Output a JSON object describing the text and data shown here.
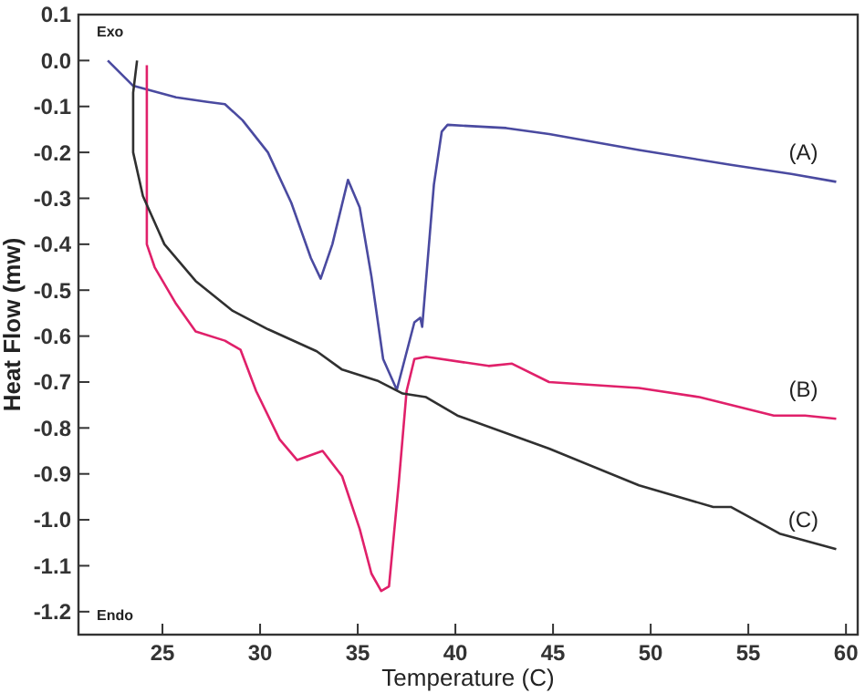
{
  "chart_data": {
    "type": "line",
    "xlabel": "Temperature (C)",
    "ylabel": "Heat Flow (mw)",
    "xlim": [
      20.7,
      60.6
    ],
    "ylim": [
      -1.25,
      0.1
    ],
    "xticks": [
      25,
      30,
      35,
      40,
      45,
      50,
      55,
      60
    ],
    "yticks": [
      {
        "value": 0.1,
        "label": "0.1"
      },
      {
        "value": 0,
        "label": "0.0"
      },
      {
        "value": -0.1,
        "label": "-0.1"
      },
      {
        "value": -0.2,
        "label": "-0.2"
      },
      {
        "value": -0.3,
        "label": "-0.3"
      },
      {
        "value": -0.4,
        "label": "-0.4"
      },
      {
        "value": -0.5,
        "label": "-0.5"
      },
      {
        "value": -0.6,
        "label": "-0.6"
      },
      {
        "value": -0.7,
        "label": "-0.7"
      },
      {
        "value": -0.8,
        "label": "-0.8"
      },
      {
        "value": -0.9,
        "label": "-0.9"
      },
      {
        "value": -1,
        "label": "-1.0"
      },
      {
        "value": -1.1,
        "label": "-1.1"
      },
      {
        "value": -1.2,
        "label": "-1.2"
      }
    ],
    "grid": false,
    "annotations": [
      "Exo",
      "Endo"
    ],
    "series": [
      {
        "name": "(A)",
        "color": "#4a4aa0",
        "x": [
          22.2,
          23.5,
          25.7,
          27.3,
          28.2,
          29.1,
          30.4,
          31.6,
          32.6,
          33.1,
          33.7,
          34.5,
          35.1,
          35.7,
          36.3,
          37.0,
          37.9,
          38.2,
          38.3,
          38.9,
          39.3,
          39.6,
          42.6,
          44.8,
          49.4,
          54.1,
          57.2,
          59.5
        ],
        "values": [
          0.0,
          -0.055,
          -0.08,
          -0.09,
          -0.095,
          -0.13,
          -0.2,
          -0.31,
          -0.43,
          -0.475,
          -0.4,
          -0.26,
          -0.32,
          -0.47,
          -0.65,
          -0.717,
          -0.57,
          -0.56,
          -0.58,
          -0.27,
          -0.155,
          -0.14,
          -0.147,
          -0.16,
          -0.195,
          -0.227,
          -0.247,
          -0.264
        ]
      },
      {
        "name": "(B)",
        "color": "#e0206a",
        "x": [
          24.2,
          24.2,
          24.2,
          24.6,
          25.7,
          26.7,
          28.2,
          29.0,
          29.8,
          31.0,
          31.9,
          33.2,
          34.2,
          35.1,
          35.7,
          36.2,
          36.6,
          37.1,
          37.5,
          37.9,
          38.5,
          41.7,
          42.9,
          44.8,
          49.4,
          52.5,
          56.3,
          57.9,
          59.5
        ],
        "values": [
          -0.01,
          -0.31,
          -0.4,
          -0.45,
          -0.53,
          -0.59,
          -0.61,
          -0.63,
          -0.72,
          -0.825,
          -0.87,
          -0.85,
          -0.905,
          -1.02,
          -1.117,
          -1.155,
          -1.145,
          -0.92,
          -0.72,
          -0.65,
          -0.645,
          -0.665,
          -0.66,
          -0.7,
          -0.713,
          -0.733,
          -0.773,
          -0.773,
          -0.78
        ]
      },
      {
        "name": "(C)",
        "color": "#303030",
        "x": [
          23.7,
          23.5,
          23.5,
          24.0,
          25.1,
          26.7,
          28.6,
          30.4,
          32.9,
          34.2,
          36.0,
          37.3,
          38.5,
          40.1,
          44.8,
          49.4,
          53.2,
          54.1,
          56.6,
          59.5
        ],
        "values": [
          0.0,
          -0.07,
          -0.2,
          -0.295,
          -0.4,
          -0.48,
          -0.545,
          -0.585,
          -0.633,
          -0.673,
          -0.697,
          -0.725,
          -0.733,
          -0.773,
          -0.845,
          -0.925,
          -0.972,
          -0.972,
          -1.03,
          -1.064
        ]
      }
    ]
  }
}
